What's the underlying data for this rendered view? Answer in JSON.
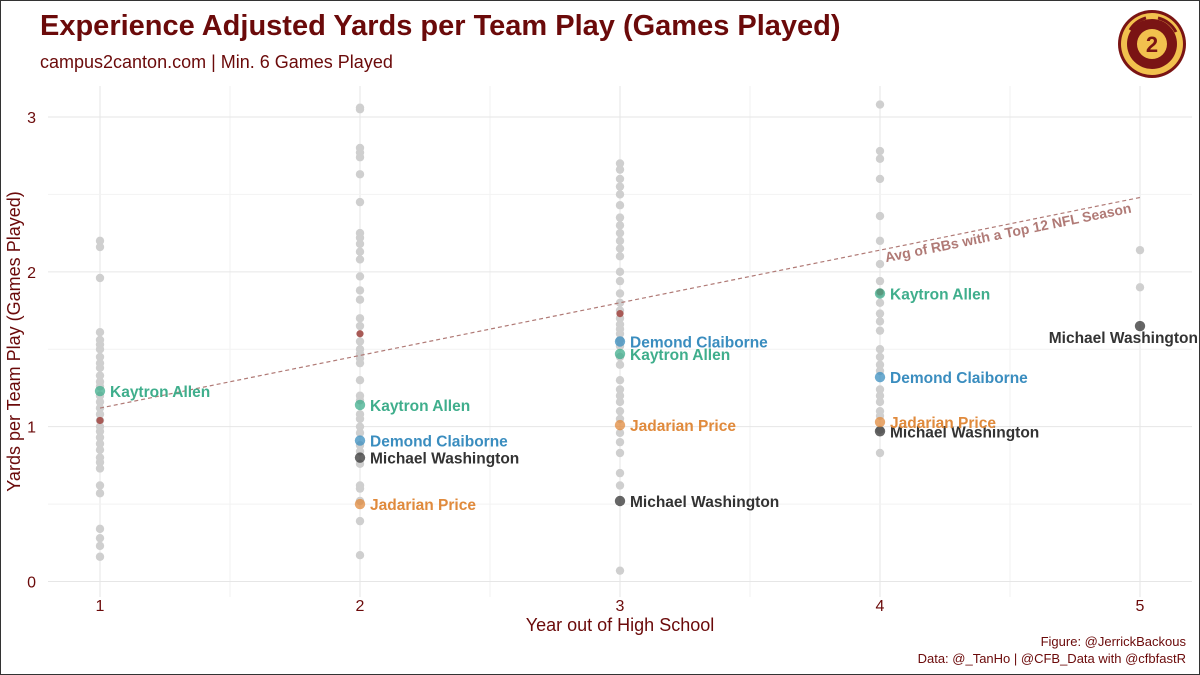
{
  "chart_data": {
    "type": "scatter",
    "title": "Experience Adjusted Yards per Team Play (Games Played)",
    "subtitle": "campus2canton.com | Min. 6 Games Played",
    "xlabel": "Year out of High School",
    "ylabel": "Yards per Team Play (Games Played)",
    "xlim": [
      0.8,
      5.2
    ],
    "ylim": [
      -0.1,
      3.2
    ],
    "xticks": [
      1,
      2,
      3,
      4,
      5
    ],
    "yticks": [
      0,
      1,
      2,
      3
    ],
    "grid": true,
    "caption": [
      "Figure: @JerrickBackous",
      "Data: @_TanHo | @CFB_Data with @cfbfastR"
    ],
    "logo_text": "CAMPUS 2 CANTON",
    "background_points": [
      {
        "x": 1,
        "y": [
          2.2,
          2.16,
          1.96,
          1.61,
          1.56,
          1.53,
          1.5,
          1.45,
          1.41,
          1.38,
          1.33,
          1.29,
          1.26,
          1.2,
          1.16,
          1.12,
          1.08,
          1.04,
          1.0,
          0.97,
          0.93,
          0.89,
          0.85,
          0.8,
          0.77,
          0.73,
          0.62,
          0.57,
          0.34,
          0.28,
          0.23,
          0.16
        ]
      },
      {
        "x": 2,
        "y": [
          3.06,
          3.05,
          2.8,
          2.77,
          2.74,
          2.63,
          2.45,
          2.25,
          2.22,
          2.18,
          2.13,
          2.08,
          1.97,
          1.88,
          1.82,
          1.7,
          1.65,
          1.55,
          1.5,
          1.47,
          1.44,
          1.41,
          1.3,
          1.2,
          1.17,
          1.08,
          1.05,
          1.0,
          0.96,
          0.88,
          0.84,
          0.76,
          0.62,
          0.6,
          0.52,
          0.39,
          0.17
        ]
      },
      {
        "x": 3,
        "y": [
          2.7,
          2.66,
          2.6,
          2.55,
          2.5,
          2.43,
          2.35,
          2.3,
          2.25,
          2.2,
          2.15,
          2.1,
          2.0,
          1.94,
          1.86,
          1.8,
          1.75,
          1.7,
          1.66,
          1.63,
          1.6,
          1.56,
          1.52,
          1.45,
          1.4,
          1.3,
          1.24,
          1.2,
          1.16,
          1.1,
          1.05,
          0.96,
          0.9,
          0.83,
          0.7,
          0.62,
          0.07
        ]
      },
      {
        "x": 4,
        "y": [
          3.08,
          2.78,
          2.73,
          2.6,
          2.36,
          2.2,
          2.05,
          1.94,
          1.86,
          1.8,
          1.73,
          1.68,
          1.62,
          1.5,
          1.45,
          1.4,
          1.36,
          1.24,
          1.2,
          1.16,
          1.1,
          1.07,
          0.98,
          0.83
        ]
      },
      {
        "x": 5,
        "y": [
          2.14,
          1.9
        ]
      }
    ],
    "average_points": [
      {
        "x": 1,
        "y": 1.04
      },
      {
        "x": 2,
        "y": 1.6
      },
      {
        "x": 3,
        "y": 1.73
      },
      {
        "x": 4,
        "y": 1.87
      }
    ],
    "trend_line": {
      "label": "Avg of RBs with a Top 12 NFL Season",
      "x": [
        1,
        5
      ],
      "y": [
        1.12,
        2.48
      ]
    },
    "series": [
      {
        "name": "Kaytron Allen",
        "color": "#3fae8c",
        "points": [
          {
            "x": 1,
            "y": 1.23
          },
          {
            "x": 2,
            "y": 1.14
          },
          {
            "x": 3,
            "y": 1.47
          },
          {
            "x": 4,
            "y": 1.86
          }
        ]
      },
      {
        "name": "Demond Claiborne",
        "color": "#3a8dbf",
        "points": [
          {
            "x": 2,
            "y": 0.91
          },
          {
            "x": 3,
            "y": 1.55
          },
          {
            "x": 4,
            "y": 1.32
          }
        ]
      },
      {
        "name": "Michael Washington",
        "color": "#333333",
        "points": [
          {
            "x": 2,
            "y": 0.8
          },
          {
            "x": 3,
            "y": 0.52
          },
          {
            "x": 4,
            "y": 0.97
          },
          {
            "x": 5,
            "y": 1.65
          }
        ]
      },
      {
        "name": "Jadarian Price",
        "color": "#e08a3c",
        "points": [
          {
            "x": 2,
            "y": 0.5
          },
          {
            "x": 3,
            "y": 1.01
          },
          {
            "x": 4,
            "y": 1.03
          }
        ]
      }
    ]
  }
}
